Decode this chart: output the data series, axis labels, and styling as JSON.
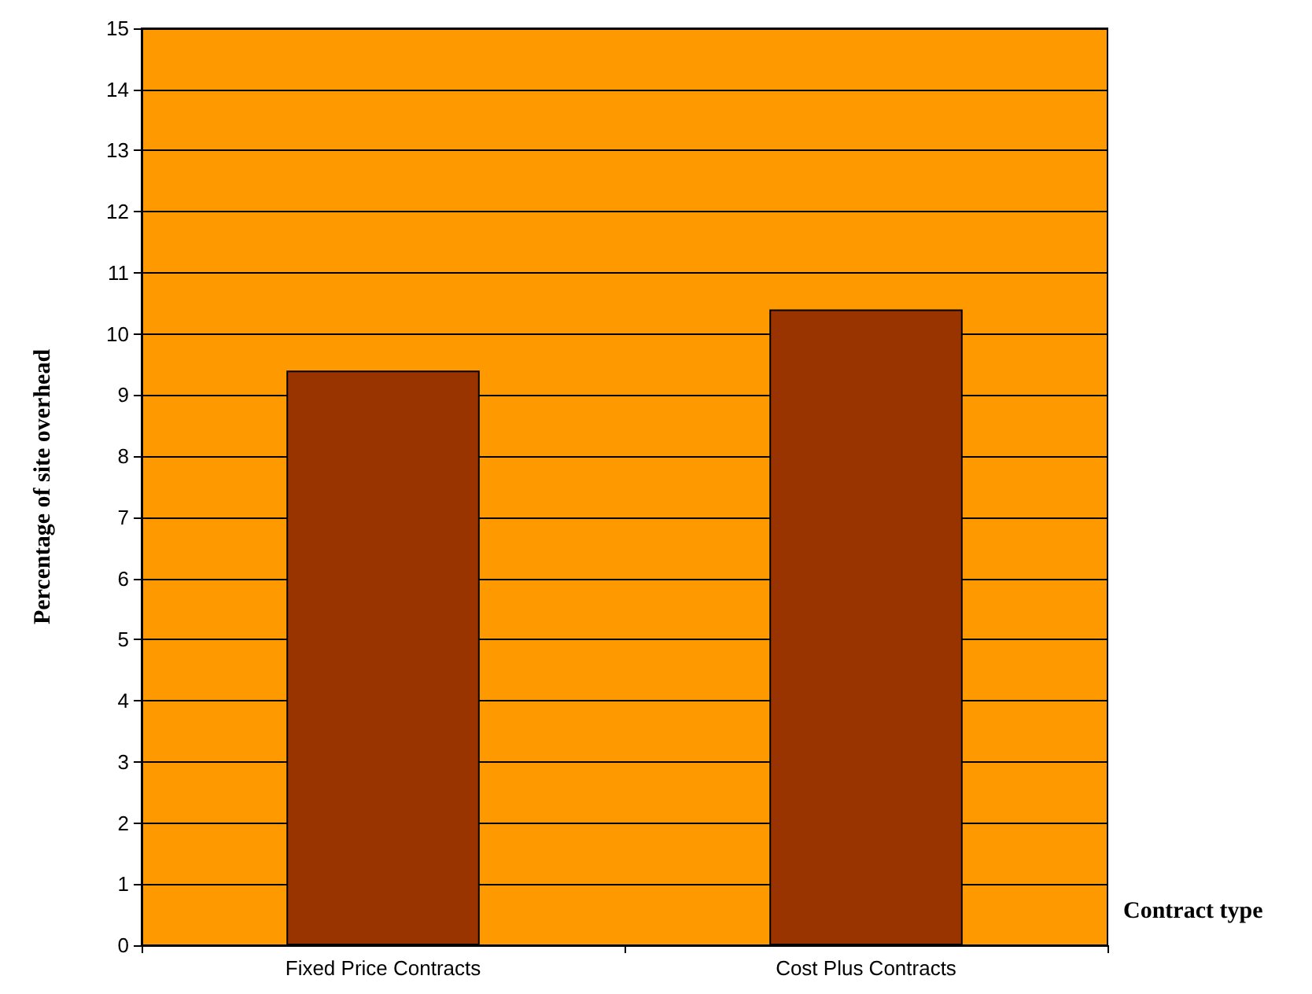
{
  "chart_data": {
    "type": "bar",
    "xlabel": "Contract type",
    "ylabel": "Percentage of site overhead",
    "categories": [
      "Fixed Price Contracts",
      "Cost Plus Contracts"
    ],
    "series": [
      {
        "color": "#993300",
        "values": [
          9.4,
          10.4
        ]
      }
    ],
    "ylim": [
      0,
      15
    ],
    "yticks": [
      0,
      1,
      2,
      3,
      4,
      5,
      6,
      7,
      8,
      9,
      10,
      11,
      12,
      13,
      14,
      15
    ],
    "grid": "y"
  }
}
